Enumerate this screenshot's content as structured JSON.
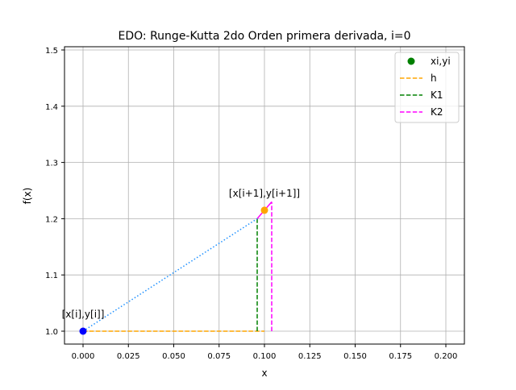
{
  "chart_data": {
    "type": "line",
    "title": "EDO: Runge-Kutta 2do Orden primera derivada, i=0",
    "xlabel": "x",
    "ylabel": "f(x)",
    "xlim": [
      -0.01,
      0.21
    ],
    "ylim": [
      0.977,
      1.505
    ],
    "xticks": [
      "0.000",
      "0.025",
      "0.050",
      "0.075",
      "0.100",
      "0.125",
      "0.150",
      "0.175",
      "0.200"
    ],
    "yticks": [
      "1.0",
      "1.1",
      "1.2",
      "1.3",
      "1.4",
      "1.5"
    ],
    "grid": true,
    "legend_position": "upper right",
    "legend": [
      {
        "label": "xi,yi",
        "style": "marker",
        "color": "#008000"
      },
      {
        "label": "h",
        "style": "dashed",
        "color": "#ffa500"
      },
      {
        "label": "K1",
        "style": "dashed",
        "color": "#008000"
      },
      {
        "label": "K2",
        "style": "dashed",
        "color": "#ff00ff"
      }
    ],
    "points": [
      {
        "name": "xi,yi",
        "x": 0.0,
        "y": 1.0,
        "color": "#0000ff"
      },
      {
        "name": "x[i+1],y[i+1]",
        "x": 0.1,
        "y": 1.215,
        "color": "#ffa500"
      }
    ],
    "series": [
      {
        "name": "h",
        "style": "dashed",
        "color": "#ffa500",
        "x": [
          0.0,
          0.1
        ],
        "y": [
          1.0,
          1.0
        ]
      },
      {
        "name": "K1",
        "style": "dashed",
        "color": "#008000",
        "x": [
          0.096,
          0.096
        ],
        "y": [
          1.0,
          1.2
        ]
      },
      {
        "name": "K2",
        "style": "dashed",
        "color": "#ff00ff",
        "x": [
          0.104,
          0.104
        ],
        "y": [
          1.0,
          1.23
        ]
      },
      {
        "name": "K2 slope",
        "style": "solid",
        "color": "#ff00ff",
        "x": [
          0.096,
          0.104
        ],
        "y": [
          1.2,
          1.23
        ]
      },
      {
        "name": "K1 slope",
        "style": "dotted",
        "color": "#1e90ff",
        "x": [
          0.0,
          0.096
        ],
        "y": [
          1.0,
          1.2
        ]
      }
    ],
    "annotations": [
      {
        "text": "[x[i],y[i]]",
        "x": 0.0,
        "y": 1.0
      },
      {
        "text": "[x[i+1],y[i+1]]",
        "x": 0.1,
        "y": 1.215
      }
    ]
  }
}
